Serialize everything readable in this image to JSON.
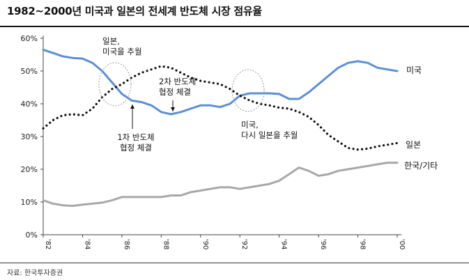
{
  "title": "1982~2000년 미국과 일본의 전세계 반도체 시장 점유율",
  "source": "자료: 한국투자증권",
  "chart_data": {
    "type": "line",
    "ylim": [
      0,
      60
    ],
    "y_ticks": [
      "60%",
      "50%",
      "40%",
      "30%",
      "20%",
      "10%",
      "0%"
    ],
    "x_ticks": [
      "'82",
      "'84",
      "'86",
      "'88",
      "'90",
      "'92",
      "'94",
      "'96",
      "'98",
      "'00"
    ],
    "x_tick_values": [
      1982,
      1984,
      1986,
      1988,
      1990,
      1992,
      1994,
      1996,
      1998,
      2000
    ],
    "x": [
      1982,
      1982.5,
      1983,
      1983.5,
      1984,
      1984.5,
      1985,
      1985.5,
      1986,
      1986.5,
      1987,
      1987.5,
      1988,
      1988.5,
      1989,
      1989.5,
      1990,
      1990.5,
      1991,
      1991.5,
      1992,
      1992.5,
      1993,
      1993.5,
      1994,
      1994.5,
      1995,
      1995.5,
      1996,
      1996.5,
      1997,
      1997.5,
      1998,
      1998.5,
      1999,
      1999.5,
      2000
    ],
    "series": [
      {
        "name": "미국",
        "style": "solid",
        "color": "#5b8fd6",
        "values": [
          56.5,
          55.5,
          54.5,
          54.0,
          53.8,
          52.5,
          50.0,
          46.5,
          43.0,
          41.0,
          40.5,
          39.5,
          37.5,
          36.8,
          37.5,
          38.5,
          39.5,
          39.5,
          39.0,
          40.0,
          42.5,
          43.2,
          43.2,
          43.2,
          43.0,
          41.5,
          41.5,
          43.5,
          46.0,
          48.5,
          51.0,
          52.5,
          53.0,
          52.5,
          51.0,
          50.5,
          50.0
        ]
      },
      {
        "name": "일본",
        "style": "dotted",
        "color": "#111111",
        "values": [
          32.5,
          35.0,
          36.5,
          36.8,
          36.5,
          38.5,
          42.0,
          44.5,
          46.0,
          48.0,
          49.5,
          50.5,
          51.5,
          51.0,
          49.5,
          48.0,
          47.0,
          46.5,
          46.0,
          44.5,
          42.5,
          41.0,
          40.0,
          39.5,
          38.8,
          38.5,
          37.5,
          36.0,
          33.5,
          30.5,
          28.5,
          26.5,
          26.0,
          26.3,
          27.0,
          27.5,
          28.0
        ]
      },
      {
        "name": "한국/기타",
        "style": "solid",
        "color": "#a8a8a8",
        "values": [
          10.5,
          9.5,
          9.0,
          8.8,
          9.2,
          9.5,
          9.8,
          10.5,
          11.5,
          11.5,
          11.5,
          11.5,
          11.5,
          12.0,
          12.0,
          13.0,
          13.5,
          14.0,
          14.5,
          14.5,
          14.0,
          14.5,
          15.0,
          15.5,
          16.5,
          18.5,
          20.5,
          19.5,
          18.0,
          18.5,
          19.5,
          20.0,
          20.5,
          21.0,
          21.5,
          22.0,
          22.0
        ]
      }
    ],
    "annotations": [
      {
        "lines": [
          "일본,",
          "미국을 추월"
        ]
      },
      {
        "lines": [
          "2차 반도체",
          "협정 체결"
        ]
      },
      {
        "lines": [
          "1차 반도체",
          "협정 체결"
        ]
      },
      {
        "lines": [
          "미국,",
          "다시 일본을 추월"
        ]
      }
    ]
  }
}
